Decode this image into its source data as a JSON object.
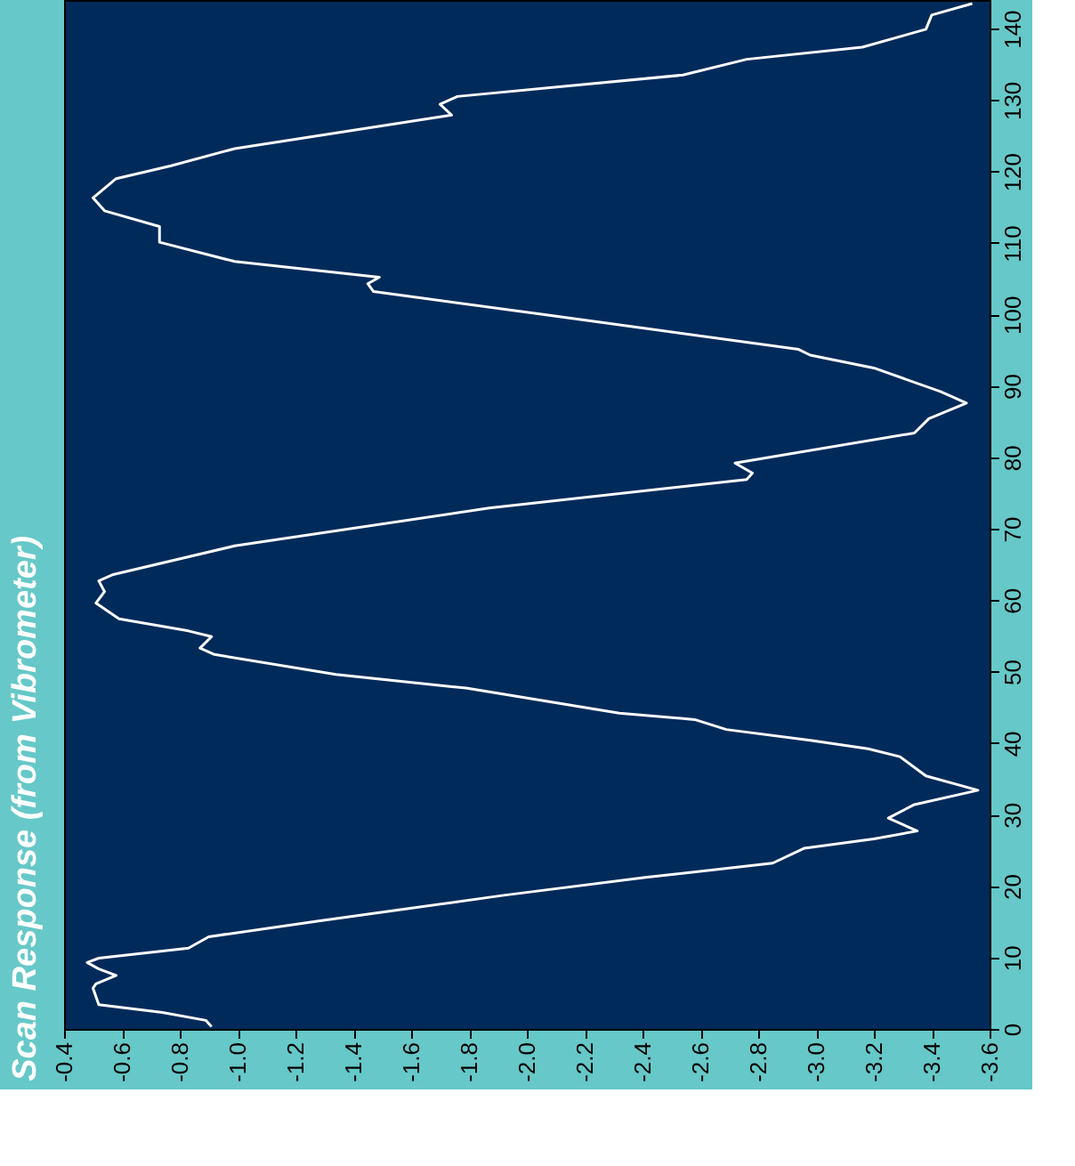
{
  "chart_data": {
    "type": "line",
    "title": "Scan Response (from Vibrometer)",
    "orientation": "horizontal",
    "x": [
      0.3,
      1.2,
      2.3,
      3.4,
      5.7,
      6.3,
      7.5,
      8.4,
      9.3,
      9.9,
      11.3,
      12.9,
      15.1,
      18.7,
      21.2,
      23.2,
      25.3,
      26.6,
      27.7,
      29.5,
      31.4,
      33.4,
      35.4,
      38.1,
      39.2,
      40.4,
      41.9,
      43.3,
      44.2,
      47.7,
      49.6,
      52.4,
      53.3,
      54.9,
      55.7,
      57.4,
      59.6,
      61.2,
      62.7,
      63.6,
      67.6,
      72.9,
      76.9,
      77.8,
      79.2,
      83.4,
      85.4,
      87.6,
      89.2,
      92.5,
      94.3,
      95.1,
      99.8,
      103.2,
      104.3,
      105.2,
      107.4,
      110.1,
      112.3,
      114.5,
      116.3,
      119.0,
      120.8,
      123.2,
      127.9,
      129.4,
      130.5,
      133.5,
      135.7,
      137.4,
      139.9,
      141.9,
      143.5
    ],
    "series": [
      {
        "color": "#ffffff",
        "values": [
          -0.91,
          -0.89,
          -0.74,
          -0.52,
          -0.5,
          -0.51,
          -0.58,
          -0.52,
          -0.48,
          -0.52,
          -0.83,
          -0.9,
          -1.28,
          -1.92,
          -2.41,
          -2.85,
          -2.96,
          -3.2,
          -3.35,
          -3.25,
          -3.34,
          -3.56,
          -3.38,
          -3.29,
          -3.18,
          -2.98,
          -2.69,
          -2.58,
          -2.32,
          -1.79,
          -1.34,
          -0.92,
          -0.87,
          -0.91,
          -0.83,
          -0.59,
          -0.51,
          -0.54,
          -0.52,
          -0.57,
          -0.99,
          -1.87,
          -2.76,
          -2.78,
          -2.72,
          -3.34,
          -3.39,
          -3.52,
          -3.43,
          -3.2,
          -2.98,
          -2.94,
          -2.09,
          -1.47,
          -1.45,
          -1.49,
          -0.99,
          -0.73,
          -0.73,
          -0.54,
          -0.5,
          -0.58,
          -0.77,
          -0.99,
          -1.74,
          -1.7,
          -1.76,
          -2.54,
          -2.76,
          -3.16,
          -3.38,
          -3.4,
          -3.54
        ]
      }
    ],
    "xlim": [
      -0.4,
      -3.6
    ],
    "xticks": [
      -0.4,
      -0.6,
      -0.8,
      {
        "value": -1,
        "label": "-1.0"
      },
      -1.2,
      -1.4,
      -1.6,
      -1.8,
      {
        "value": -2,
        "label": "-2.0"
      },
      -2.2,
      -2.4,
      -2.6,
      -2.8,
      {
        "value": -3,
        "label": "-3.0"
      },
      -3.2,
      -3.4,
      -3.6
    ],
    "ylim": [
      0,
      144
    ],
    "yticks": [
      0,
      10,
      20,
      30,
      40,
      50,
      60,
      70,
      80,
      90,
      100,
      110,
      120,
      130,
      140
    ],
    "grid": false,
    "legend": false,
    "marker": "none",
    "line_style": "solid"
  }
}
